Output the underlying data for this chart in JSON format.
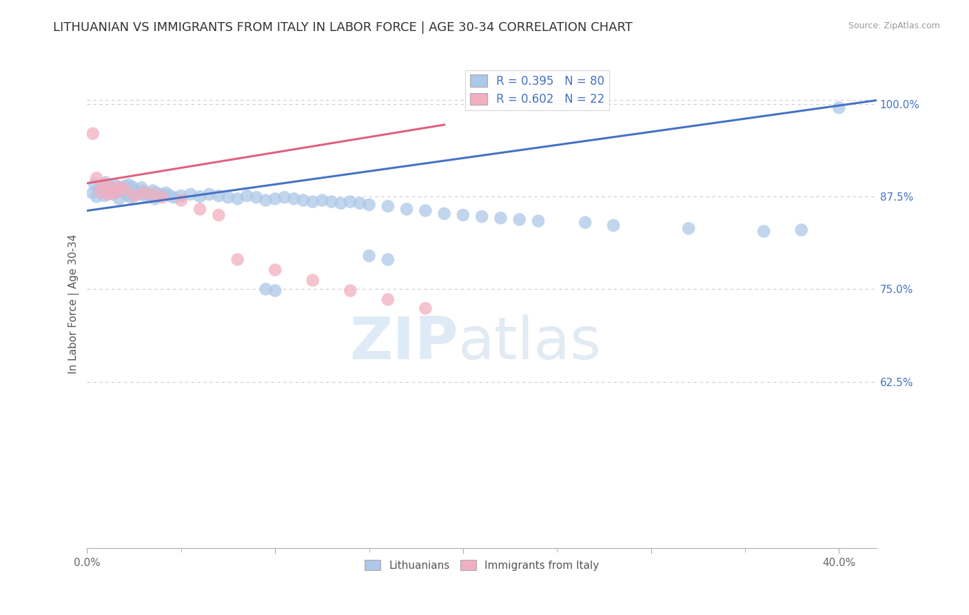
{
  "title": "LITHUANIAN VS IMMIGRANTS FROM ITALY IN LABOR FORCE | AGE 30-34 CORRELATION CHART",
  "source": "Source: ZipAtlas.com",
  "ylabel": "In Labor Force | Age 30-34",
  "xlim": [
    0.0,
    0.42
  ],
  "ylim": [
    0.4,
    1.06
  ],
  "ytick_positions": [
    0.625,
    0.75,
    0.875,
    1.0
  ],
  "ytick_labels": [
    "62.5%",
    "75.0%",
    "87.5%",
    "100.0%"
  ],
  "xtick_left_label": "0.0%",
  "xtick_right_label": "40.0%",
  "watermark_zip": "ZIP",
  "watermark_atlas": "atlas",
  "blue_R": 0.395,
  "blue_N": 80,
  "pink_R": 0.602,
  "pink_N": 22,
  "blue_color": "#adc8e8",
  "pink_color": "#f2afc0",
  "blue_line_color": "#4472c4",
  "pink_line_color": "#e06080",
  "legend_label_blue": "Lithuanians",
  "legend_label_pink": "Immigrants from Italy",
  "blue_scatter_x": [
    0.003,
    0.004,
    0.005,
    0.006,
    0.007,
    0.008,
    0.009,
    0.01,
    0.011,
    0.012,
    0.013,
    0.014,
    0.015,
    0.016,
    0.017,
    0.018,
    0.019,
    0.02,
    0.021,
    0.022,
    0.023,
    0.024,
    0.025,
    0.026,
    0.027,
    0.028,
    0.029,
    0.03,
    0.031,
    0.032,
    0.033,
    0.034,
    0.035,
    0.036,
    0.037,
    0.038,
    0.04,
    0.042,
    0.044,
    0.046,
    0.05,
    0.055,
    0.06,
    0.065,
    0.07,
    0.075,
    0.08,
    0.085,
    0.09,
    0.095,
    0.1,
    0.105,
    0.11,
    0.115,
    0.12,
    0.125,
    0.13,
    0.135,
    0.14,
    0.145,
    0.15,
    0.16,
    0.17,
    0.18,
    0.19,
    0.2,
    0.21,
    0.22,
    0.23,
    0.24,
    0.15,
    0.16,
    0.265,
    0.28,
    0.32,
    0.36,
    0.38,
    0.4,
    0.095,
    0.1
  ],
  "blue_scatter_y": [
    0.88,
    0.892,
    0.875,
    0.885,
    0.882,
    0.888,
    0.876,
    0.894,
    0.879,
    0.883,
    0.887,
    0.878,
    0.89,
    0.884,
    0.872,
    0.886,
    0.881,
    0.889,
    0.877,
    0.891,
    0.874,
    0.888,
    0.876,
    0.883,
    0.88,
    0.878,
    0.887,
    0.882,
    0.879,
    0.874,
    0.878,
    0.876,
    0.883,
    0.872,
    0.88,
    0.875,
    0.878,
    0.88,
    0.876,
    0.874,
    0.876,
    0.878,
    0.875,
    0.878,
    0.876,
    0.874,
    0.872,
    0.876,
    0.874,
    0.87,
    0.872,
    0.874,
    0.872,
    0.87,
    0.868,
    0.87,
    0.868,
    0.866,
    0.868,
    0.866,
    0.864,
    0.862,
    0.858,
    0.856,
    0.852,
    0.85,
    0.848,
    0.846,
    0.844,
    0.842,
    0.795,
    0.79,
    0.84,
    0.836,
    0.832,
    0.828,
    0.83,
    0.995,
    0.75,
    0.748
  ],
  "pink_scatter_x": [
    0.003,
    0.005,
    0.007,
    0.009,
    0.011,
    0.013,
    0.015,
    0.017,
    0.02,
    0.025,
    0.03,
    0.035,
    0.04,
    0.05,
    0.06,
    0.07,
    0.08,
    0.1,
    0.12,
    0.14,
    0.16,
    0.18
  ],
  "pink_scatter_y": [
    0.96,
    0.9,
    0.882,
    0.892,
    0.878,
    0.886,
    0.88,
    0.888,
    0.884,
    0.876,
    0.88,
    0.878,
    0.874,
    0.87,
    0.858,
    0.85,
    0.79,
    0.776,
    0.762,
    0.748,
    0.736,
    0.724
  ],
  "blue_line_x": [
    0.0,
    0.42
  ],
  "blue_line_y": [
    0.856,
    1.005
  ],
  "pink_line_x": [
    0.0,
    0.19
  ],
  "pink_line_y": [
    0.893,
    0.972
  ],
  "title_fontsize": 13,
  "axis_label_fontsize": 11,
  "tick_fontsize": 11,
  "dot_size": 180,
  "background_color": "#ffffff",
  "grid_color": "#cccccc",
  "tick_color_y": "#4472c4",
  "tick_color_x": "#666666"
}
